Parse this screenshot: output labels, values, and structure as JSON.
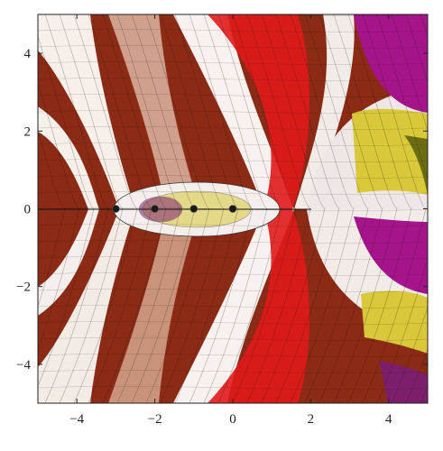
{
  "chart_data": {
    "type": "heatmap",
    "title": "",
    "xlabel": "",
    "ylabel": "",
    "xlim": [
      -5,
      5
    ],
    "ylim": [
      -5,
      5
    ],
    "x_ticks": [
      -4,
      -2,
      0,
      2,
      4
    ],
    "y_ticks": [
      -4,
      -2,
      0,
      2,
      4
    ],
    "x_tick_labels": [
      "−4",
      "−2",
      "0",
      "2",
      "4"
    ],
    "y_tick_labels": [
      "−4",
      "−2",
      "0",
      "2",
      "4"
    ],
    "grid": false,
    "colormap": "complex phase domain coloring with modulus contour mesh",
    "branch_cut": {
      "from": [
        -5,
        0
      ],
      "to": [
        2,
        0
      ]
    },
    "marked_points": [
      {
        "x": 0,
        "y": 0
      },
      {
        "x": -1,
        "y": 0
      },
      {
        "x": -2,
        "y": 0
      },
      {
        "x": -3,
        "y": 0
      }
    ],
    "colors": {
      "red": "#e01a1a",
      "magenta": "#a5148a",
      "yellow": "#d8c83a",
      "olive": "#6a6d12",
      "light": "#f4efec",
      "dark": "#3b1b12"
    }
  }
}
